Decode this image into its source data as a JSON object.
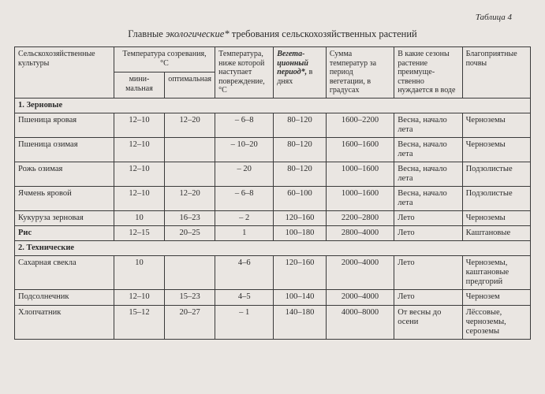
{
  "table_label": "Таблица 4",
  "title_pre": "Главные ",
  "title_em": "экологические*",
  "title_post": " требования сельскохозяйственных растений",
  "headers": {
    "crops": "Сельскохозяйственные культуры",
    "temp_mature": "Температура созревания, °С",
    "temp_min": "мини­мальная",
    "temp_opt": "опти­мальная",
    "temp_damage": "Температу­ра, ниже которой наступает поврежде­ние, °С",
    "veg_em": "Вегета­ционный период*,",
    "veg_rest": " в днях",
    "sum_temp": "Сумма температур за период вегетации, в градусах",
    "seasons": "В какие сезоны растение преимуще­ственно нуждается в воде",
    "soils": "Благоприят­ные почвы"
  },
  "sections": {
    "s1": "1. Зерновые",
    "s2": "2. Технические"
  },
  "rows": [
    {
      "name": "Пшеница яровая",
      "min": "12–10",
      "opt": "12–20",
      "dmg": "– 6–8",
      "veg": "80–120",
      "sum": "1600–2200",
      "sea": "Весна, на­чало лета",
      "soil": "Черноземы"
    },
    {
      "name": "Пшеница озимая",
      "min": "12–10",
      "opt": "",
      "dmg": "– 10–20",
      "veg": "80–120",
      "sum": "1600–1600",
      "sea": "Весна, на­чало лета",
      "soil": "Черноземы"
    },
    {
      "name": "Рожь озимая",
      "min": "12–10",
      "opt": "",
      "dmg": "– 20",
      "veg": "80–120",
      "sum": "1000–1600",
      "sea": "Весна, на­чало лета",
      "soil": "Подзолис­тые"
    },
    {
      "name": "Ячмень яровой",
      "min": "12–10",
      "opt": "12–20",
      "dmg": "– 6–8",
      "veg": "60–100",
      "sum": "1000–1600",
      "sea": "Весна, на­чало лета",
      "soil": "Подзолис­тые"
    },
    {
      "name": "Кукуруза зерновая",
      "min": "10",
      "opt": "16–23",
      "dmg": "– 2",
      "veg": "120–160",
      "sum": "2200–2800",
      "sea": "Лето",
      "soil": "Черноземы"
    },
    {
      "name": "Рис",
      "min": "12–15",
      "opt": "20–25",
      "dmg": "1",
      "veg": "100–180",
      "sum": "2800–4000",
      "sea": "Лето",
      "soil": "Каштановые"
    },
    {
      "name": "Сахарная свекла",
      "min": "10",
      "opt": "",
      "dmg": "4–6",
      "veg": "120–160",
      "sum": "2000–4000",
      "sea": "Лето",
      "soil": "Черноземы, каштановые предгорий"
    },
    {
      "name": "Подсолнечник",
      "min": "12–10",
      "opt": "15–23",
      "dmg": "4–5",
      "veg": "100–140",
      "sum": "2000–4000",
      "sea": "Лето",
      "soil": "Чернозем"
    },
    {
      "name": "Хлопчатник",
      "min": "15–12",
      "opt": "20–27",
      "dmg": "– 1",
      "veg": "140–180",
      "sum": "4000–8000",
      "sea": "От весны до осени",
      "soil": "Лёссовые, черноземы, сероземы"
    }
  ]
}
